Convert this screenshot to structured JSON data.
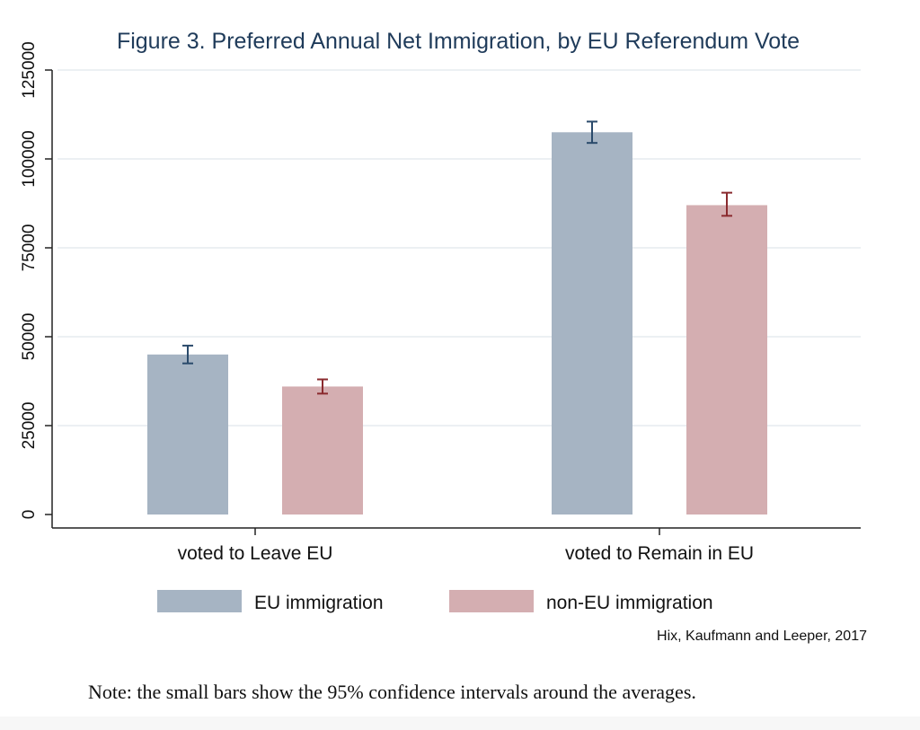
{
  "chart_data": {
    "type": "bar",
    "title": "Figure 3. Preferred Annual Net Immigration, by EU Referendum Vote",
    "categories": [
      "voted to Leave EU",
      "voted to Remain in EU"
    ],
    "series": [
      {
        "name": "EU immigration",
        "values": [
          45000,
          107500
        ],
        "ci_low": [
          42500,
          104500
        ],
        "ci_high": [
          47500,
          110500
        ]
      },
      {
        "name": "non-EU immigration",
        "values": [
          36000,
          87000
        ],
        "ci_low": [
          34000,
          84000
        ],
        "ci_high": [
          38000,
          90500
        ]
      }
    ],
    "ylim": [
      0,
      125000
    ],
    "yticks": [
      0,
      25000,
      50000,
      75000,
      100000,
      125000
    ],
    "ytick_labels": [
      "0",
      "25000",
      "50000",
      "75000",
      "100000",
      "125000"
    ],
    "xlabel": "",
    "ylabel": "",
    "grid": true,
    "legend_position": "bottom",
    "source": "Hix, Kaufmann and Leeper, 2017"
  },
  "colors": {
    "eu_bar": "#a6b4c3",
    "noneu_bar": "#d4aeb1",
    "eu_ci": "#2a4a6b",
    "noneu_ci": "#8a2a2e",
    "title": "#1f3b5a",
    "grid": "#e0e8ec",
    "axis": "#222222"
  },
  "note": "Note: the small bars show the 95% confidence intervals around the averages."
}
